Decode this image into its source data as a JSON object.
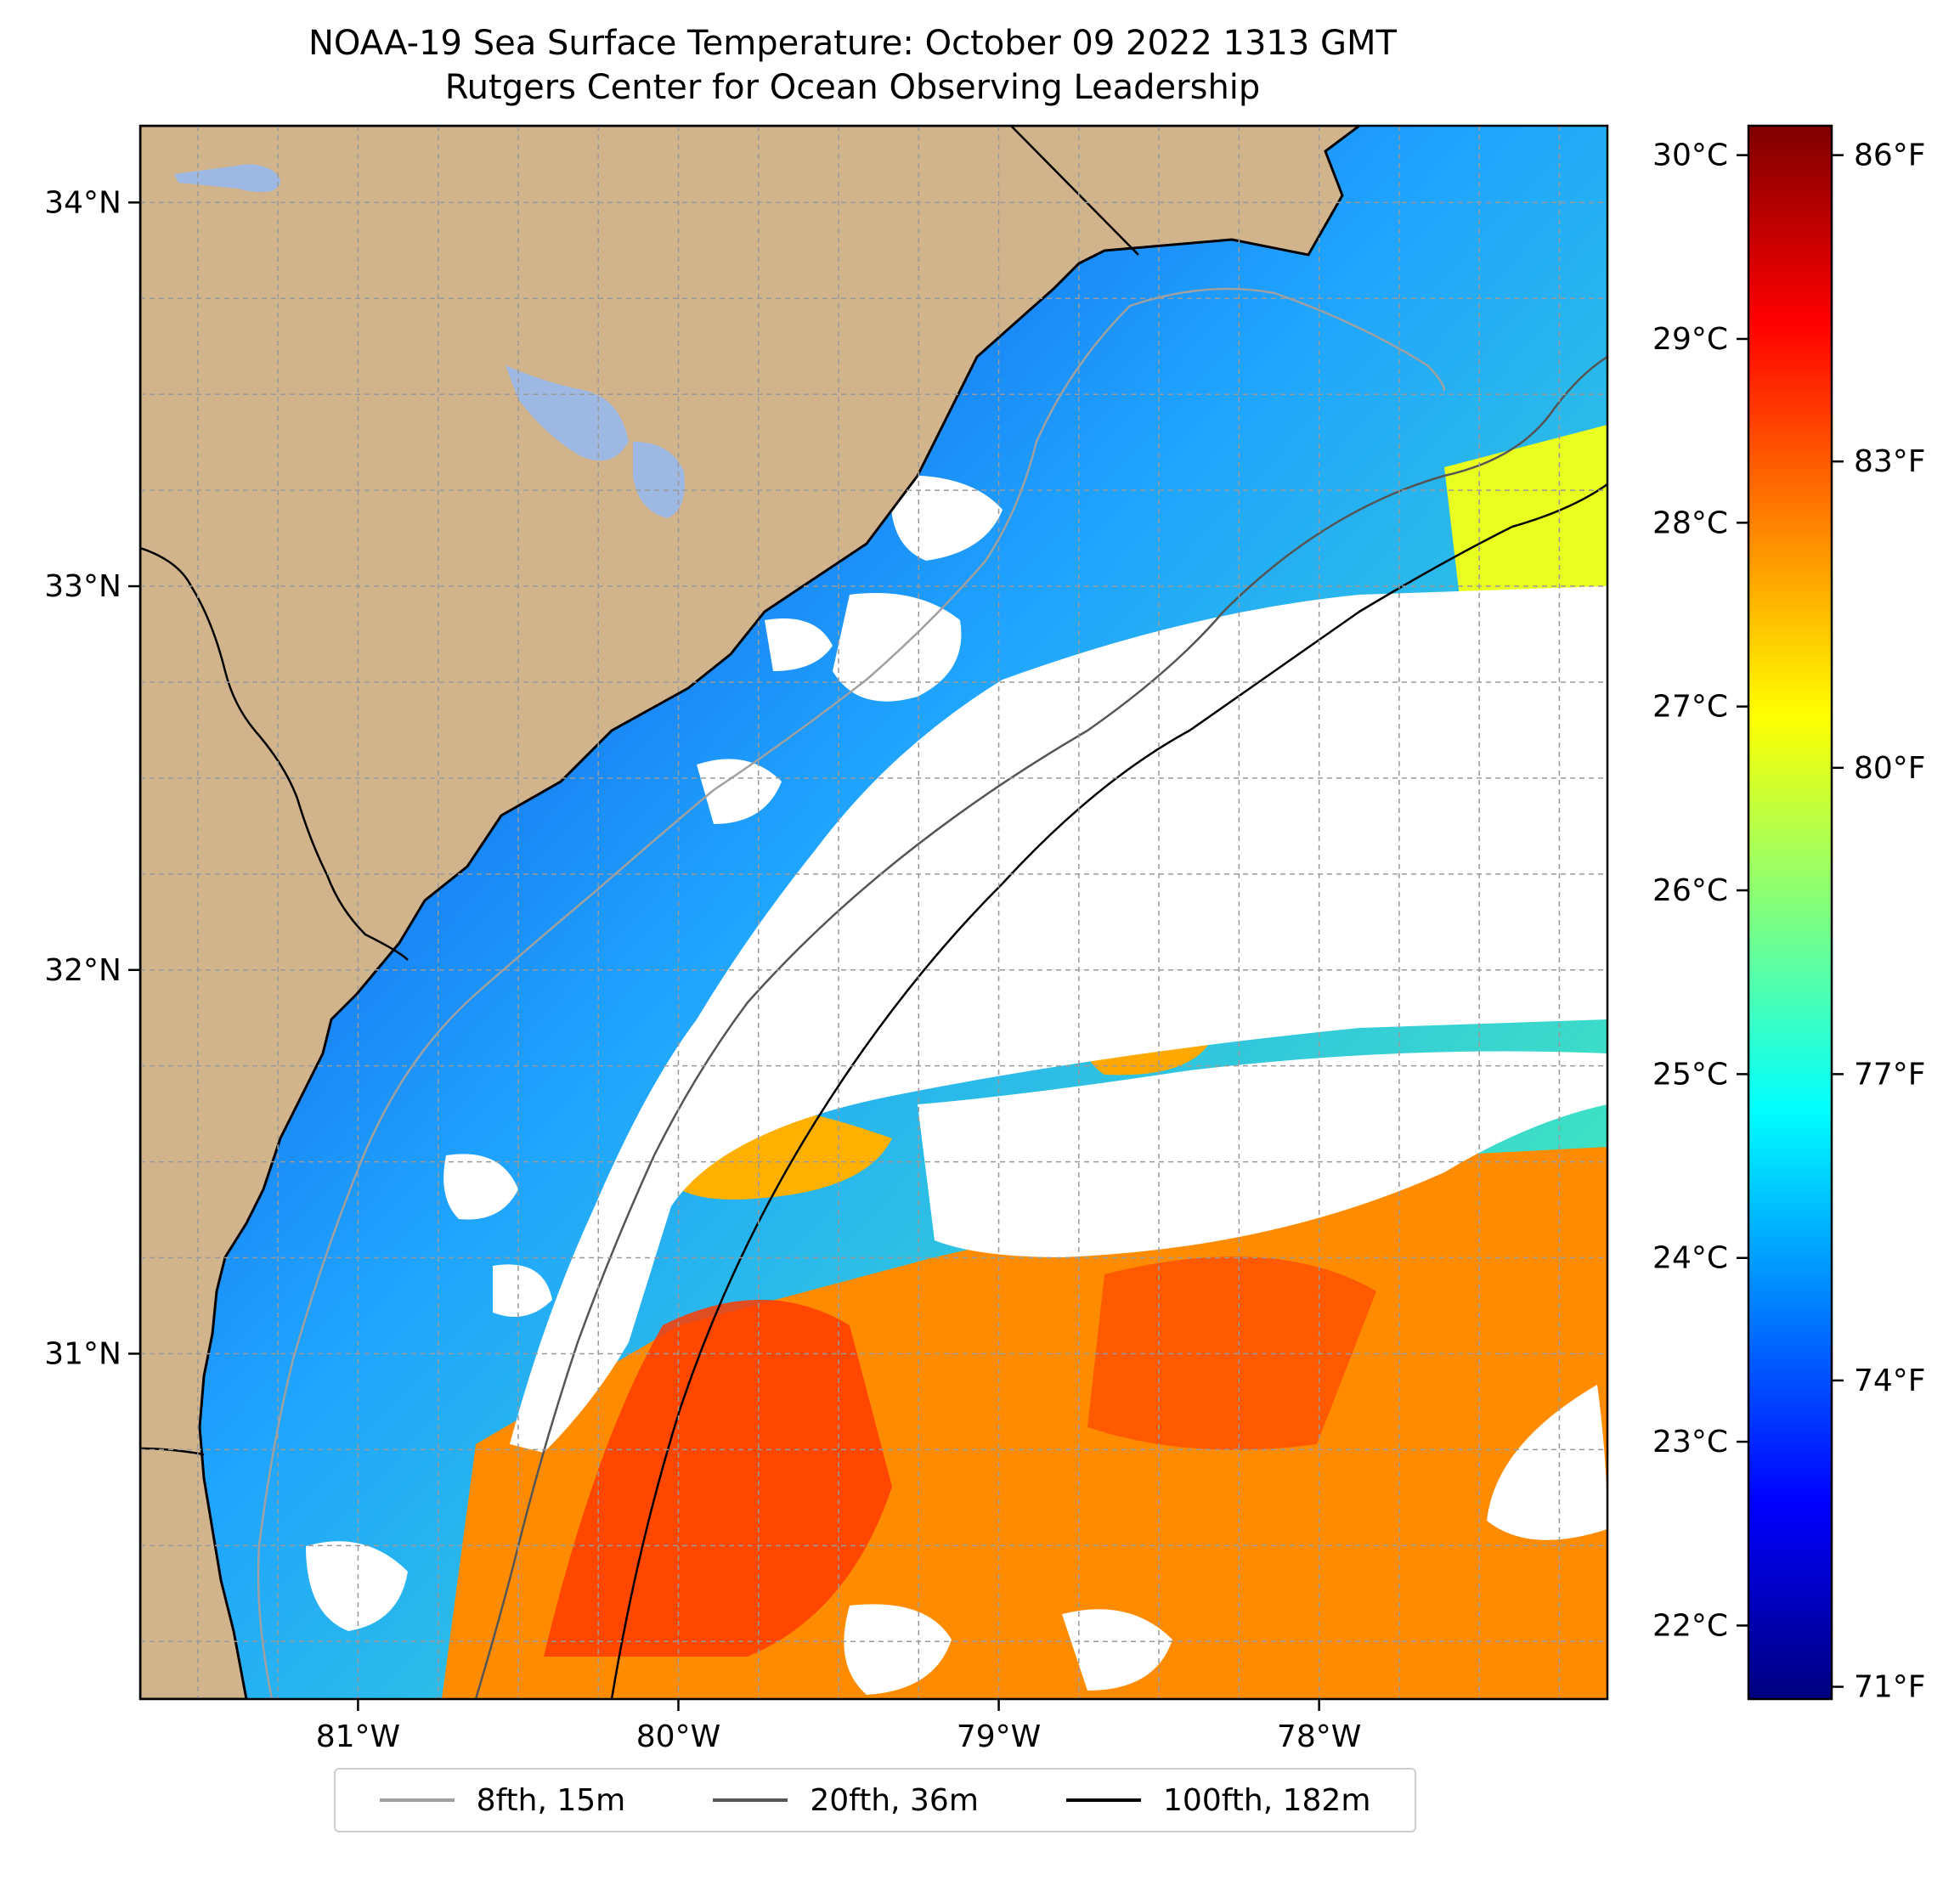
{
  "title": {
    "line1": "NOAA-19 Sea Surface Temperature: October 09 2022 1313 GMT",
    "line2": "Rutgers Center for Ocean Observing Leadership"
  },
  "map": {
    "lon_range": [
      -81.68,
      -77.1
    ],
    "lat_range": [
      30.1,
      34.2
    ],
    "lon_ticks": [
      -81,
      -80,
      -79,
      -78
    ],
    "lon_labels": [
      "81°W",
      "80°W",
      "79°W",
      "78°W"
    ],
    "lat_ticks": [
      34,
      33,
      32,
      31
    ],
    "lat_labels": [
      "34°N",
      "33°N",
      "32°N",
      "31°N"
    ],
    "land_color": "#d2b48c",
    "water_body_color": "#9db8e2",
    "gridline_color": "#9a9a9a"
  },
  "colorbar": {
    "colormap": "jet",
    "celsius_range": [
      21.6,
      30.16
    ],
    "celsius_ticks": [
      22,
      23,
      24,
      25,
      26,
      27,
      28,
      29,
      30
    ],
    "celsius_labels": [
      "22°C",
      "23°C",
      "24°C",
      "25°C",
      "26°C",
      "27°C",
      "28°C",
      "29°C",
      "30°C"
    ],
    "fahrenheit_ticks": [
      71,
      74,
      77,
      80,
      83,
      86
    ],
    "fahrenheit_labels": [
      "71°F",
      "74°F",
      "77°F",
      "80°F",
      "83°F",
      "86°F"
    ]
  },
  "legend": {
    "items": [
      {
        "label": "8fth, 15m",
        "color": "#a0a0a0"
      },
      {
        "label": "20fth, 36m",
        "color": "#555555"
      },
      {
        "label": "100fth, 182m",
        "color": "#000000"
      }
    ]
  }
}
